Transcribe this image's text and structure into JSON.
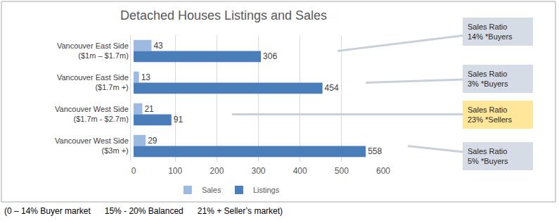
{
  "chart_data": {
    "type": "bar",
    "orientation": "horizontal",
    "title": "Detached Houses Listings and Sales",
    "categories": [
      "Vancouver East Side ($1m – $1.7m)",
      "Vancouver East Side ($1.7m +)",
      "Vancouver West Side ($1.7m - $2.7m)",
      "Vancouver West Side ($3m +)"
    ],
    "series": [
      {
        "name": "Sales",
        "color": "#9dbbe0",
        "values": [
          43,
          13,
          21,
          29
        ]
      },
      {
        "name": "Listings",
        "color": "#4a7ebb",
        "values": [
          306,
          454,
          91,
          558
        ]
      }
    ],
    "xlim": [
      0,
      600
    ],
    "xticks": [
      0,
      100,
      200,
      300,
      400,
      500,
      600
    ],
    "grid": true,
    "legend": "bottom",
    "data_labels": true,
    "annotations": [
      {
        "category": "Vancouver East Side ($1m – $1.7m)",
        "lines": [
          "Sales Ratio",
          "14% *Buyers"
        ],
        "color": "#d6dce5"
      },
      {
        "category": "Vancouver East Side ($1.7m +)",
        "lines": [
          "Sales Ratio",
          "3% *Buyers"
        ],
        "color": "#d6dce5"
      },
      {
        "category": "Vancouver West Side ($1.7m - $2.7m)",
        "lines": [
          "Sales Ratio",
          "23% *Sellers"
        ],
        "color": "#ffe699"
      },
      {
        "category": "Vancouver West Side ($3m +)",
        "lines": [
          "Sales Ratio",
          "5% *Buyers"
        ],
        "color": "#d6dce5"
      }
    ],
    "footnote": "(0 – 14% Buyer market      15% - 20% Balanced      21% + Seller’s market)"
  }
}
